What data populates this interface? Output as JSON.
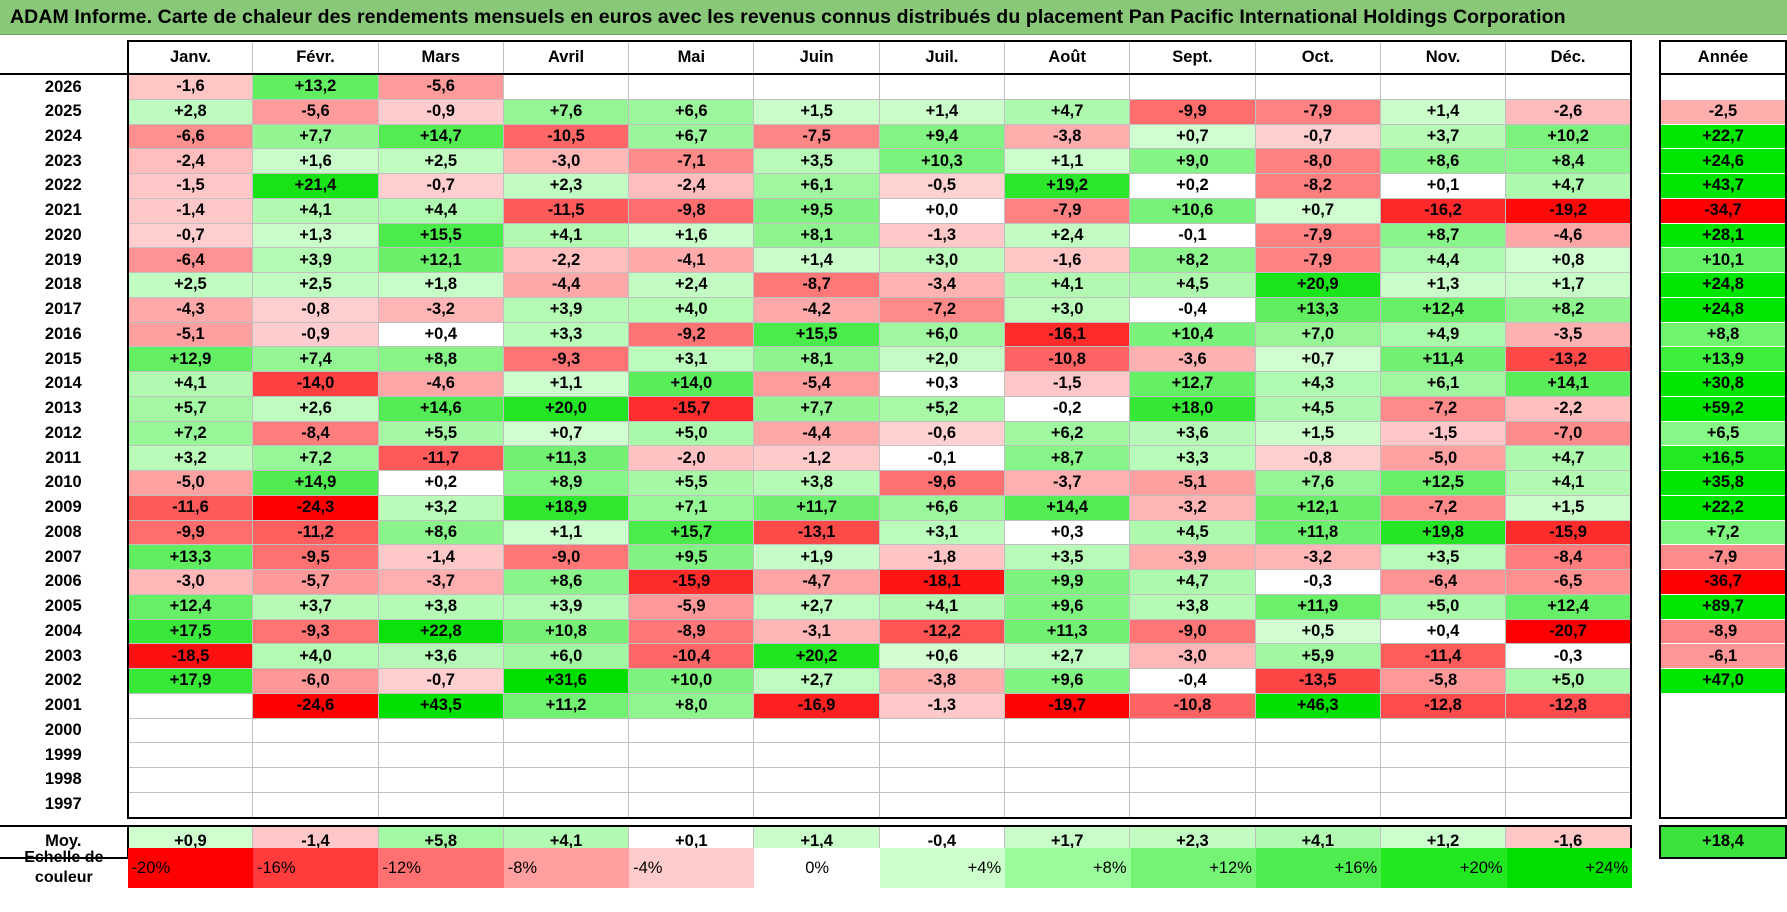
{
  "title": "ADAM Informe. Carte de chaleur des rendements mensuels en euros avec les revenus connus distribués du placement Pan Pacific International Holdings Corporation",
  "chart_data": {
    "type": "heatmap",
    "title": "ADAM Informe. Carte de chaleur des rendements mensuels en euros avec les revenus connus distribués du placement Pan Pacific International Holdings Corporation",
    "months": [
      "Janv.",
      "Févr.",
      "Mars",
      "Avril",
      "Mai",
      "Juin",
      "Juil.",
      "Août",
      "Sept.",
      "Oct.",
      "Nov.",
      "Déc."
    ],
    "year_header": "Année",
    "avg_label": "Moy.",
    "rows": [
      {
        "year": "2026",
        "values": [
          "-1,6",
          "+13,2",
          "-5,6",
          "",
          "",
          "",
          "",
          "",
          "",
          "",
          "",
          ""
        ],
        "annual": ""
      },
      {
        "year": "2025",
        "values": [
          "+2,8",
          "-5,6",
          "-0,9",
          "+7,6",
          "+6,6",
          "+1,5",
          "+1,4",
          "+4,7",
          "-9,9",
          "-7,9",
          "+1,4",
          "-2,6"
        ],
        "annual": "-2,5"
      },
      {
        "year": "2024",
        "values": [
          "-6,6",
          "+7,7",
          "+14,7",
          "-10,5",
          "+6,7",
          "-7,5",
          "+9,4",
          "-3,8",
          "+0,7",
          "-0,7",
          "+3,7",
          "+10,2"
        ],
        "annual": "+22,7"
      },
      {
        "year": "2023",
        "values": [
          "-2,4",
          "+1,6",
          "+2,5",
          "-3,0",
          "-7,1",
          "+3,5",
          "+10,3",
          "+1,1",
          "+9,0",
          "-8,0",
          "+8,6",
          "+8,4"
        ],
        "annual": "+24,6"
      },
      {
        "year": "2022",
        "values": [
          "-1,5",
          "+21,4",
          "-0,7",
          "+2,3",
          "-2,4",
          "+6,1",
          "-0,5",
          "+19,2",
          "+0,2",
          "-8,2",
          "+0,1",
          "+4,7"
        ],
        "annual": "+43,7"
      },
      {
        "year": "2021",
        "values": [
          "-1,4",
          "+4,1",
          "+4,4",
          "-11,5",
          "-9,8",
          "+9,5",
          "+0,0",
          "-7,9",
          "+10,6",
          "+0,7",
          "-16,2",
          "-19,2"
        ],
        "annual": "-34,7"
      },
      {
        "year": "2020",
        "values": [
          "-0,7",
          "+1,3",
          "+15,5",
          "+4,1",
          "+1,6",
          "+8,1",
          "-1,3",
          "+2,4",
          "-0,1",
          "-7,9",
          "+8,7",
          "-4,6"
        ],
        "annual": "+28,1"
      },
      {
        "year": "2019",
        "values": [
          "-6,4",
          "+3,9",
          "+12,1",
          "-2,2",
          "-4,1",
          "+1,4",
          "+3,0",
          "-1,6",
          "+8,2",
          "-7,9",
          "+4,4",
          "+0,8"
        ],
        "annual": "+10,1"
      },
      {
        "year": "2018",
        "values": [
          "+2,5",
          "+2,5",
          "+1,8",
          "-4,4",
          "+2,4",
          "-8,7",
          "-3,4",
          "+4,1",
          "+4,5",
          "+20,9",
          "+1,3",
          "+1,7"
        ],
        "annual": "+24,8"
      },
      {
        "year": "2017",
        "values": [
          "-4,3",
          "-0,8",
          "-3,2",
          "+3,9",
          "+4,0",
          "-4,2",
          "-7,2",
          "+3,0",
          "-0,4",
          "+13,3",
          "+12,4",
          "+8,2"
        ],
        "annual": "+24,8"
      },
      {
        "year": "2016",
        "values": [
          "-5,1",
          "-0,9",
          "+0,4",
          "+3,3",
          "-9,2",
          "+15,5",
          "+6,0",
          "-16,1",
          "+10,4",
          "+7,0",
          "+4,9",
          "-3,5"
        ],
        "annual": "+8,8"
      },
      {
        "year": "2015",
        "values": [
          "+12,9",
          "+7,4",
          "+8,8",
          "-9,3",
          "+3,1",
          "+8,1",
          "+2,0",
          "-10,8",
          "-3,6",
          "+0,7",
          "+11,4",
          "-13,2"
        ],
        "annual": "+13,9"
      },
      {
        "year": "2014",
        "values": [
          "+4,1",
          "-14,0",
          "-4,6",
          "+1,1",
          "+14,0",
          "-5,4",
          "+0,3",
          "-1,5",
          "+12,7",
          "+4,3",
          "+6,1",
          "+14,1"
        ],
        "annual": "+30,8"
      },
      {
        "year": "2013",
        "values": [
          "+5,7",
          "+2,6",
          "+14,6",
          "+20,0",
          "-15,7",
          "+7,7",
          "+5,2",
          "-0,2",
          "+18,0",
          "+4,5",
          "-7,2",
          "-2,2"
        ],
        "annual": "+59,2"
      },
      {
        "year": "2012",
        "values": [
          "+7,2",
          "-8,4",
          "+5,5",
          "+0,7",
          "+5,0",
          "-4,4",
          "-0,6",
          "+6,2",
          "+3,6",
          "+1,5",
          "-1,5",
          "-7,0"
        ],
        "annual": "+6,5"
      },
      {
        "year": "2011",
        "values": [
          "+3,2",
          "+7,2",
          "-11,7",
          "+11,3",
          "-2,0",
          "-1,2",
          "-0,1",
          "+8,7",
          "+3,3",
          "-0,8",
          "-5,0",
          "+4,7"
        ],
        "annual": "+16,5"
      },
      {
        "year": "2010",
        "values": [
          "-5,0",
          "+14,9",
          "+0,2",
          "+8,9",
          "+5,5",
          "+3,8",
          "-9,6",
          "-3,7",
          "-5,1",
          "+7,6",
          "+12,5",
          "+4,1"
        ],
        "annual": "+35,8"
      },
      {
        "year": "2009",
        "values": [
          "-11,6",
          "-24,3",
          "+3,2",
          "+18,9",
          "+7,1",
          "+11,7",
          "+6,6",
          "+14,4",
          "-3,2",
          "+12,1",
          "-7,2",
          "+1,5"
        ],
        "annual": "+22,2"
      },
      {
        "year": "2008",
        "values": [
          "-9,9",
          "-11,2",
          "+8,6",
          "+1,1",
          "+15,7",
          "-13,1",
          "+3,1",
          "+0,3",
          "+4,5",
          "+11,8",
          "+19,8",
          "-15,9"
        ],
        "annual": "+7,2"
      },
      {
        "year": "2007",
        "values": [
          "+13,3",
          "-9,5",
          "-1,4",
          "-9,0",
          "+9,5",
          "+1,9",
          "-1,8",
          "+3,5",
          "-3,9",
          "-3,2",
          "+3,5",
          "-8,4"
        ],
        "annual": "-7,9"
      },
      {
        "year": "2006",
        "values": [
          "-3,0",
          "-5,7",
          "-3,7",
          "+8,6",
          "-15,9",
          "-4,7",
          "-18,1",
          "+9,9",
          "+4,7",
          "-0,3",
          "-6,4",
          "-6,5"
        ],
        "annual": "-36,7"
      },
      {
        "year": "2005",
        "values": [
          "+12,4",
          "+3,7",
          "+3,8",
          "+3,9",
          "-5,9",
          "+2,7",
          "+4,1",
          "+9,6",
          "+3,8",
          "+11,9",
          "+5,0",
          "+12,4"
        ],
        "annual": "+89,7"
      },
      {
        "year": "2004",
        "values": [
          "+17,5",
          "-9,3",
          "+22,8",
          "+10,8",
          "-8,9",
          "-3,1",
          "-12,2",
          "+11,3",
          "-9,0",
          "+0,5",
          "+0,4",
          "-20,7"
        ],
        "annual": "-8,9"
      },
      {
        "year": "2003",
        "values": [
          "-18,5",
          "+4,0",
          "+3,6",
          "+6,0",
          "-10,4",
          "+20,2",
          "+0,6",
          "+2,7",
          "-3,0",
          "+5,9",
          "-11,4",
          "-0,3"
        ],
        "annual": "-6,1"
      },
      {
        "year": "2002",
        "values": [
          "+17,9",
          "-6,0",
          "-0,7",
          "+31,6",
          "+10,0",
          "+2,7",
          "-3,8",
          "+9,6",
          "-0,4",
          "-13,5",
          "-5,8",
          "+5,0"
        ],
        "annual": "+47,0"
      },
      {
        "year": "2001",
        "values": [
          "",
          "-24,6",
          "+43,5",
          "+11,2",
          "+8,0",
          "-16,9",
          "-1,3",
          "-19,7",
          "-10,8",
          "+46,3",
          "-12,8",
          "-12,8"
        ],
        "annual": ""
      },
      {
        "year": "2000",
        "values": [
          "",
          "",
          "",
          "",
          "",
          "",
          "",
          "",
          "",
          "",
          "",
          ""
        ],
        "annual": ""
      },
      {
        "year": "1999",
        "values": [
          "",
          "",
          "",
          "",
          "",
          "",
          "",
          "",
          "",
          "",
          "",
          ""
        ],
        "annual": ""
      },
      {
        "year": "1998",
        "values": [
          "",
          "",
          "",
          "",
          "",
          "",
          "",
          "",
          "",
          "",
          "",
          ""
        ],
        "annual": ""
      },
      {
        "year": "1997",
        "values": [
          "",
          "",
          "",
          "",
          "",
          "",
          "",
          "",
          "",
          "",
          "",
          ""
        ],
        "annual": ""
      }
    ],
    "averages": [
      "+0,9",
      "-1,4",
      "+5,8",
      "+4,1",
      "+0,1",
      "+1,4",
      "-0,4",
      "+1,7",
      "+2,3",
      "+4,1",
      "+1,2",
      "-1,6"
    ],
    "average_annual": "+18,4",
    "color_scale": {
      "label": "Echelle de couleur",
      "steps": [
        "-20%",
        "-16%",
        "-12%",
        "-8%",
        "-4%",
        "0%",
        "+4%",
        "+8%",
        "+12%",
        "+16%",
        "+20%",
        "+24%"
      ],
      "colors": [
        "#ff0000",
        "#ff3b3b",
        "#ff7070",
        "#ff9f9f",
        "#ffcccc",
        "#ffffff",
        "#ccffcc",
        "#9cfb9c",
        "#74f374",
        "#4eec4e",
        "#22e822",
        "#00e000"
      ]
    },
    "neutral_color": "#ffffff",
    "negative_color": "#ff0000",
    "positive_color": "#00e000"
  }
}
